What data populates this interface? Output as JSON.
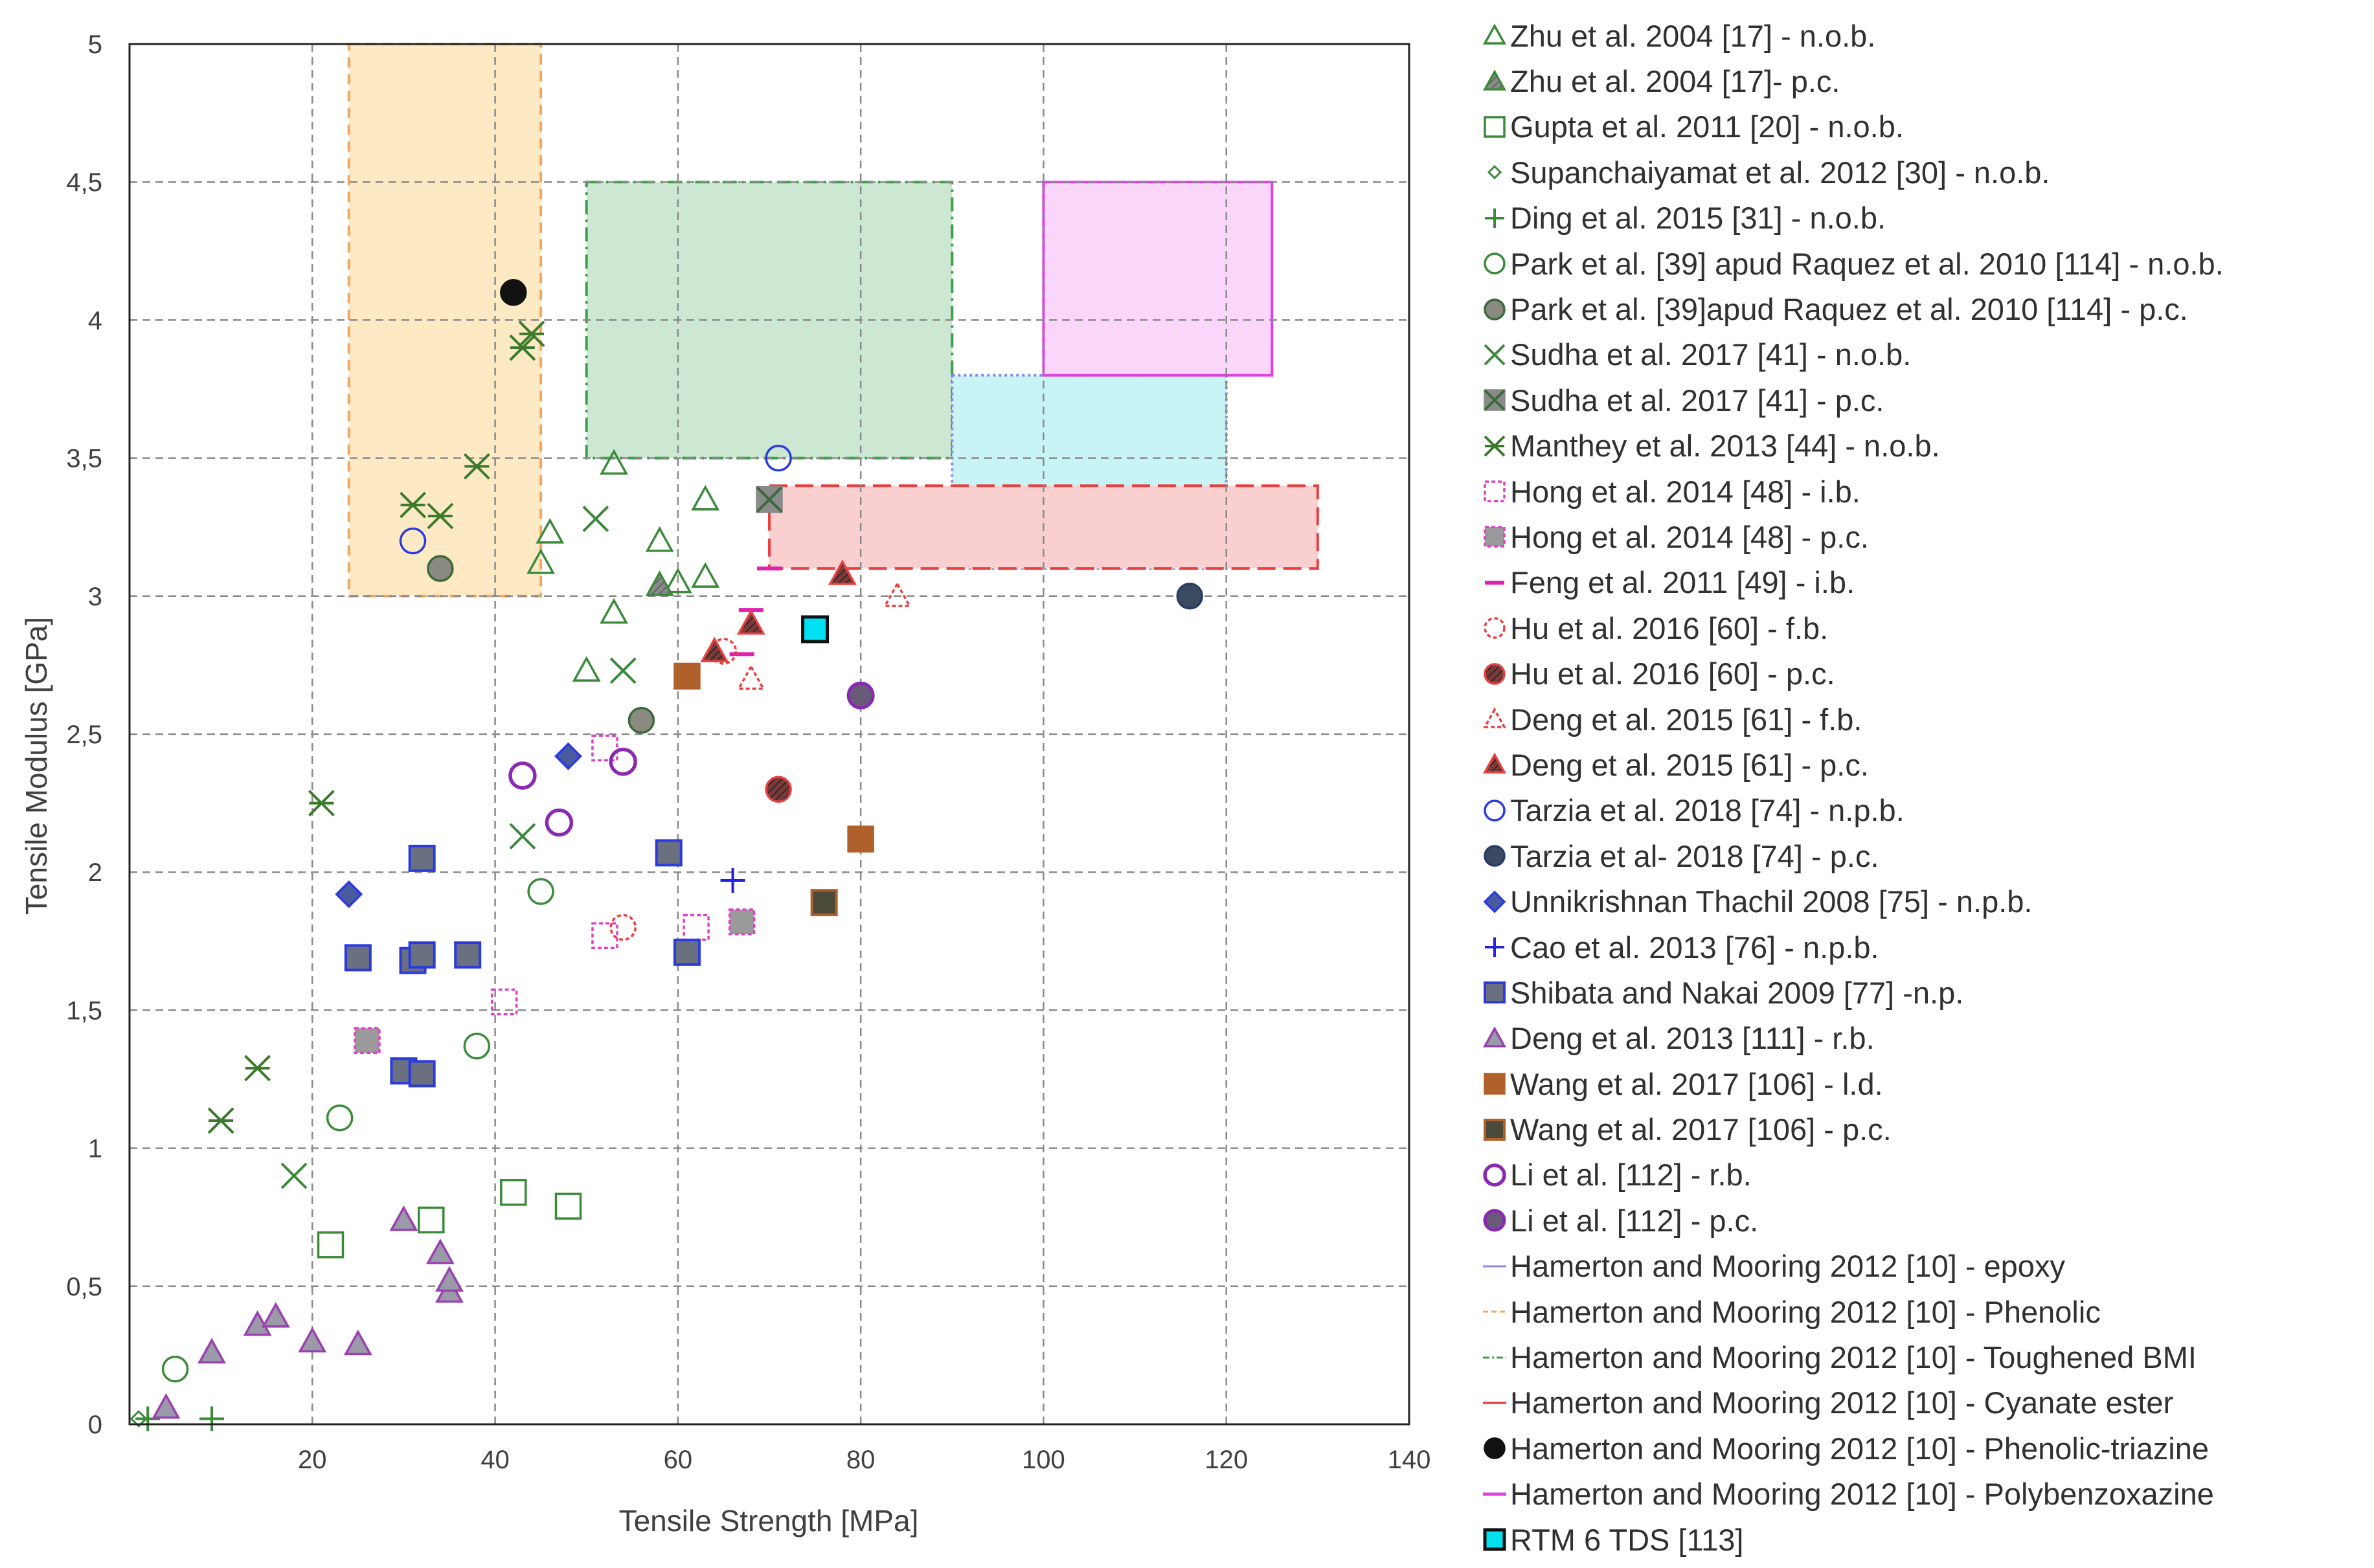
{
  "chart_data": {
    "type": "scatter",
    "xlabel": "Tensile Strength [MPa]",
    "ylabel": "Tensile Modulus [GPa]",
    "xlim": [
      0,
      140
    ],
    "ylim": [
      0,
      5
    ],
    "x_ticks": [
      "20",
      "40",
      "60",
      "80",
      "100",
      "120",
      "140"
    ],
    "y_ticks": [
      "0",
      "0,5",
      "1",
      "1,5",
      "2",
      "2,5",
      "3",
      "3,5",
      "4",
      "4,5",
      "5"
    ],
    "grid": true,
    "legend_position": "right",
    "regions": [
      {
        "name": "Hamerton and Mooring 2012 [10] - Phenolic",
        "x": [
          24,
          45
        ],
        "y": [
          3.0,
          5.0
        ],
        "fill": "#fde9c4",
        "stroke": "#f0a860",
        "dash": "dashed"
      },
      {
        "name": "Hamerton and Mooring 2012 [10] - Toughened BMI",
        "x": [
          50,
          90
        ],
        "y": [
          3.5,
          4.5
        ],
        "fill": "#cde8d2",
        "stroke": "#3aa04a",
        "dash": "dashdot"
      },
      {
        "name": "Hamerton and Mooring 2012 [10] - epoxy",
        "x": [
          90,
          120
        ],
        "y": [
          3.1,
          3.8
        ],
        "fill": "#c9f4f6",
        "stroke": "#8a8ae0",
        "dash": "dotted"
      },
      {
        "name": "Hamerton and Mooring 2012 [10] - Polybenzoxazine",
        "x": [
          100,
          125
        ],
        "y": [
          3.8,
          4.5
        ],
        "fill": "#fbd6fb",
        "stroke": "#e040e0",
        "dash": "solid"
      },
      {
        "name": "Hamerton and Mooring 2012 [10] - Cyanate ester",
        "x": [
          70,
          130
        ],
        "y": [
          3.1,
          3.4
        ],
        "fill": "#f9d0cf",
        "stroke": "#e84040",
        "dash": "longdash"
      }
    ],
    "series": [
      {
        "name": "Zhu et al. 2004 [17] - n.o.b.",
        "marker": "triangle-open",
        "color": "#3a8a3a",
        "points": [
          [
            53,
            3.48
          ],
          [
            45,
            3.12
          ],
          [
            46,
            3.23
          ],
          [
            63,
            3.35
          ],
          [
            58,
            3.2
          ],
          [
            63,
            3.07
          ],
          [
            60,
            3.05
          ],
          [
            53,
            2.94
          ],
          [
            50,
            2.73
          ]
        ]
      },
      {
        "name": "Zhu et al. 2004 [17]- p.c.",
        "marker": "triangle-filled",
        "color": "#3a8a3a",
        "points": [
          [
            58,
            3.04
          ]
        ]
      },
      {
        "name": "Gupta et al. 2011 [20] - n.o.b.",
        "marker": "square-open",
        "color": "#3a8a3a",
        "points": [
          [
            22,
            0.65
          ],
          [
            33,
            0.74
          ],
          [
            42,
            0.84
          ],
          [
            48,
            0.79
          ]
        ]
      },
      {
        "name": "Supanchaiyamat et al. 2012 [30] - n.o.b.",
        "marker": "diamond-small",
        "color": "#3a8a3a",
        "points": [
          [
            1,
            0.02
          ]
        ]
      },
      {
        "name": "Ding et al. 2015 [31] - n.o.b.",
        "marker": "plus",
        "color": "#3a8a3a",
        "points": [
          [
            2,
            0.02
          ],
          [
            9,
            0.02
          ]
        ]
      },
      {
        "name": "Park et al. [39] apud Raquez et al. 2010 [114] - n.o.b.",
        "marker": "circle-open",
        "color": "#3a8a3a",
        "points": [
          [
            5,
            0.2
          ],
          [
            23,
            1.11
          ],
          [
            38,
            1.37
          ],
          [
            45,
            1.93
          ]
        ]
      },
      {
        "name": "Park et al. [39]apud Raquez et al. 2010 [114] - p.c.",
        "marker": "circle-filled-gray",
        "color": "#3a6a3a",
        "points": [
          [
            34,
            3.1
          ],
          [
            56,
            2.55
          ]
        ]
      },
      {
        "name": "Sudha et al. 2017 [41] - n.o.b.",
        "marker": "x",
        "color": "#3a8a3a",
        "points": [
          [
            18,
            0.9
          ],
          [
            43,
            2.13
          ],
          [
            51,
            3.28
          ],
          [
            54,
            2.73
          ]
        ]
      },
      {
        "name": "Sudha et al. 2017 [41] - p.c.",
        "marker": "x-square",
        "color": "#3a6a3a",
        "points": [
          [
            70,
            3.35
          ]
        ]
      },
      {
        "name": "Manthey et al. 2013 [44] - n.o.b.",
        "marker": "asterisk",
        "color": "#3a7a2a",
        "points": [
          [
            10,
            1.1
          ],
          [
            14,
            1.29
          ],
          [
            21,
            2.25
          ],
          [
            31,
            3.33
          ],
          [
            34,
            3.29
          ],
          [
            38,
            3.47
          ],
          [
            44,
            3.95
          ],
          [
            43,
            3.9
          ]
        ]
      },
      {
        "name": "Hong et al. 2014 [48] - i.b.",
        "marker": "square-dashed",
        "color": "#e040c8",
        "points": [
          [
            41,
            1.53
          ],
          [
            52,
            2.45
          ],
          [
            52,
            1.77
          ],
          [
            62,
            1.8
          ]
        ]
      },
      {
        "name": "Hong et al. 2014 [48] - p.c.",
        "marker": "square-gray-magenta",
        "color": "#e040c8",
        "points": [
          [
            26,
            1.39
          ],
          [
            67,
            1.82
          ]
        ]
      },
      {
        "name": "Feng et al. 2011 [49] - i.b.",
        "marker": "dash",
        "color": "#e020b0",
        "points": [
          [
            67,
            2.79
          ],
          [
            68,
            2.95
          ],
          [
            70,
            3.1
          ]
        ]
      },
      {
        "name": "Hu et al. 2016 [60] - f.b.",
        "marker": "circle-dashed",
        "color": "#e84040",
        "points": [
          [
            54,
            1.8
          ],
          [
            65,
            2.8
          ]
        ]
      },
      {
        "name": "Hu et al. 2016 [60] - p.c.",
        "marker": "circle-red-hatch",
        "color": "#e84040",
        "points": [
          [
            71,
            2.3
          ]
        ]
      },
      {
        "name": "Deng et al. 2015 [61] - f.b.",
        "marker": "triangle-dashed",
        "color": "#e84040",
        "points": [
          [
            68,
            2.7
          ],
          [
            84,
            3.0
          ]
        ]
      },
      {
        "name": "Deng et al. 2015 [61] - p.c.",
        "marker": "triangle-red-hatch",
        "color": "#e84040",
        "points": [
          [
            64,
            2.8
          ],
          [
            68,
            2.9
          ],
          [
            78,
            3.08
          ]
        ]
      },
      {
        "name": "Tarzia et al. 2018 [74] - n.p.b.",
        "marker": "circle-open",
        "color": "#2a3ae0",
        "points": [
          [
            31,
            3.2
          ],
          [
            71,
            3.5
          ]
        ]
      },
      {
        "name": "Tarzia et al- 2018 [74] - p.c.",
        "marker": "circle-filled-dark",
        "color": "#2a3a6a",
        "points": [
          [
            116,
            3.0
          ]
        ]
      },
      {
        "name": "Unnikrishnan Thachil 2008 [75] - n.p.b.",
        "marker": "diamond-filled",
        "color": "#2a3ae0",
        "points": [
          [
            24,
            1.92
          ],
          [
            48,
            2.42
          ]
        ]
      },
      {
        "name": "Cao et al. 2013 [76] - n.p.b.",
        "marker": "plus",
        "color": "#2020e0",
        "points": [
          [
            66,
            1.97
          ]
        ]
      },
      {
        "name": "Shibata and Nakai 2009 [77] -n.p.",
        "marker": "square-blue-gray",
        "color": "#2a3ae0",
        "points": [
          [
            25,
            1.69
          ],
          [
            31,
            1.68
          ],
          [
            32,
            1.7
          ],
          [
            37,
            1.7
          ],
          [
            32,
            2.05
          ],
          [
            30,
            1.28
          ],
          [
            32,
            1.27
          ],
          [
            59,
            2.07
          ],
          [
            61,
            1.71
          ]
        ]
      },
      {
        "name": "Deng et al. 2013 [111] - r.b.",
        "marker": "triangle-purple",
        "color": "#9a40b0",
        "points": [
          [
            4,
            0.06
          ],
          [
            9,
            0.26
          ],
          [
            14,
            0.36
          ],
          [
            16,
            0.39
          ],
          [
            20,
            0.3
          ],
          [
            25,
            0.29
          ],
          [
            30,
            0.74
          ],
          [
            34,
            0.62
          ],
          [
            35,
            0.48
          ],
          [
            35,
            0.52
          ]
        ]
      },
      {
        "name": "Wang et al. 2017 [106] - l.d.",
        "marker": "square-brown",
        "color": "#b0602a",
        "points": [
          [
            61,
            2.71
          ],
          [
            80,
            2.12
          ]
        ]
      },
      {
        "name": "Wang et al. 2017 [106] - p.c.",
        "marker": "square-dark",
        "color": "#5a5a40",
        "points": [
          [
            76,
            1.89
          ]
        ]
      },
      {
        "name": "Li et al. [112] - r.b.",
        "marker": "circle-open-thick",
        "color": "#8a2ab0",
        "points": [
          [
            43,
            2.35
          ],
          [
            47,
            2.18
          ],
          [
            54,
            2.4
          ]
        ]
      },
      {
        "name": "Li et al. [112] - p.c.",
        "marker": "circle-purple-filled",
        "color": "#8a2ab0",
        "points": [
          [
            80,
            2.64
          ]
        ]
      },
      {
        "name": "Hamerton and Mooring 2012 [10] - Phenolic-triazine",
        "marker": "circle-black",
        "color": "#111111",
        "points": [
          [
            42,
            4.1
          ]
        ]
      },
      {
        "name": "RTM 6 TDS [113]",
        "marker": "square-cyan",
        "color": "#00e0f0",
        "points": [
          [
            75,
            2.88
          ]
        ]
      }
    ]
  },
  "legend": [
    {
      "label": "Zhu et al. 2004 [17] - n.o.b.",
      "icon": "triangle-open",
      "color": "#3a8a3a"
    },
    {
      "label": "Zhu et al. 2004 [17]- p.c.",
      "icon": "triangle-filled",
      "color": "#3a8a3a"
    },
    {
      "label": "Gupta et al. 2011 [20] - n.o.b.",
      "icon": "square-open",
      "color": "#3a8a3a"
    },
    {
      "label": "Supanchaiyamat et al. 2012 [30] - n.o.b.",
      "icon": "diamond-small",
      "color": "#3a8a3a"
    },
    {
      "label": "Ding et al. 2015 [31] - n.o.b.",
      "icon": "plus",
      "color": "#3a8a3a"
    },
    {
      "label": "Park et al. [39] apud Raquez et al. 2010 [114] - n.o.b.",
      "icon": "circle-open",
      "color": "#3a8a3a"
    },
    {
      "label": "Park et al. [39]apud Raquez et al. 2010 [114] - p.c.",
      "icon": "circle-filled-gray",
      "color": "#3a6a3a"
    },
    {
      "label": "Sudha et al. 2017 [41] - n.o.b.",
      "icon": "x",
      "color": "#3a8a3a"
    },
    {
      "label": "Sudha et al. 2017 [41] - p.c.",
      "icon": "x-square",
      "color": "#3a6a3a"
    },
    {
      "label": " Manthey et al. 2013 [44] - n.o.b.",
      "icon": "asterisk",
      "color": "#3a7a2a"
    },
    {
      "label": "Hong et al. 2014 [48] - i.b.",
      "icon": "square-dashed",
      "color": "#e040c8"
    },
    {
      "label": "Hong et al. 2014 [48] - p.c.",
      "icon": "square-gray-magenta",
      "color": "#e040c8"
    },
    {
      "label": "Feng et al. 2011 [49] - i.b.",
      "icon": "dash",
      "color": "#e020b0"
    },
    {
      "label": "Hu et al. 2016 [60] - f.b.",
      "icon": "circle-dashed",
      "color": "#e84040"
    },
    {
      "label": "Hu et al. 2016 [60] - p.c.",
      "icon": "circle-red-hatch",
      "color": "#e84040"
    },
    {
      "label": "Deng et al. 2015 [61] - f.b.",
      "icon": "triangle-dashed",
      "color": "#e84040"
    },
    {
      "label": "Deng et al. 2015 [61] - p.c.",
      "icon": "triangle-red-hatch",
      "color": "#e84040"
    },
    {
      "label": "Tarzia et al. 2018 [74] - n.p.b.",
      "icon": "circle-open",
      "color": "#2a3ae0"
    },
    {
      "label": "Tarzia et al- 2018 [74] - p.c.",
      "icon": "circle-filled-dark",
      "color": "#2a3a6a"
    },
    {
      "label": "Unnikrishnan Thachil 2008 [75] - n.p.b.",
      "icon": "diamond-filled",
      "color": "#2a3ae0"
    },
    {
      "label": "Cao et al. 2013 [76] - n.p.b.",
      "icon": "plus",
      "color": "#2020e0"
    },
    {
      "label": "Shibata and Nakai 2009 [77] -n.p.",
      "icon": "square-blue-gray",
      "color": "#2a3ae0"
    },
    {
      "label": "Deng et al. 2013 [111] - r.b.",
      "icon": "triangle-purple",
      "color": "#9a40b0"
    },
    {
      "label": "Wang et al. 2017 [106] - l.d.",
      "icon": "square-brown",
      "color": "#b0602a"
    },
    {
      "label": "Wang et al. 2017 [106] - p.c.",
      "icon": "square-dark",
      "color": "#5a5a40"
    },
    {
      "label": "Li et al. [112] - r.b.",
      "icon": "circle-open-thick",
      "color": "#8a2ab0"
    },
    {
      "label": "Li et al. [112] - p.c.",
      "icon": "circle-purple-filled",
      "color": "#8a2ab0"
    },
    {
      "label": "Hamerton and Mooring 2012 [10] - epoxy",
      "icon": "line-solid",
      "color": "#8a8ae0"
    },
    {
      "label": "Hamerton and Mooring 2012 [10] - Phenolic",
      "icon": "line-dashed",
      "color": "#f0a860"
    },
    {
      "label": "Hamerton and Mooring 2012 [10] - Toughened BMI",
      "icon": "line-dashdot",
      "color": "#3aa04a"
    },
    {
      "label": "Hamerton and Mooring 2012 [10] - Cyanate ester",
      "icon": "line-red",
      "color": "#e84040"
    },
    {
      "label": "Hamerton and Mooring 2012 [10] - Phenolic-triazine",
      "icon": "circle-black",
      "color": "#111111"
    },
    {
      "label": "Hamerton and Mooring 2012 [10] - Polybenzoxazine",
      "icon": "line-magenta",
      "color": "#e040e0"
    },
    {
      "label": "RTM 6 TDS [113]",
      "icon": "square-cyan",
      "color": "#00e0f0"
    }
  ]
}
